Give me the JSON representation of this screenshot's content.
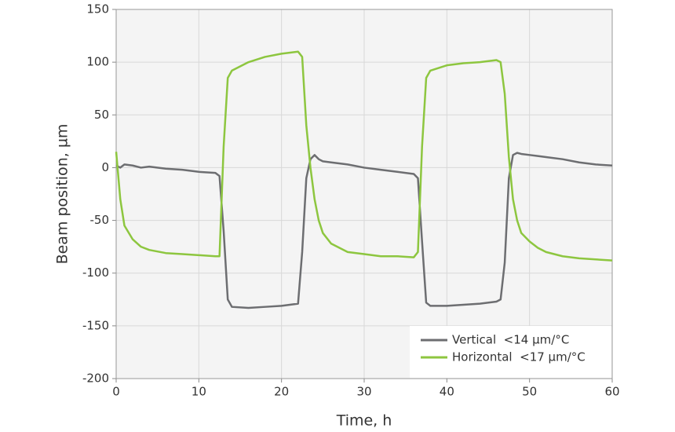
{
  "chart_data": {
    "type": "line",
    "xlabel": "Time, h",
    "ylabel": "Beam position, µm",
    "x": [
      0,
      0.5,
      1,
      2,
      3,
      4,
      6,
      8,
      10,
      12,
      12.5,
      13,
      13.5,
      14,
      16,
      18,
      20,
      22,
      22.5,
      23,
      23.5,
      24,
      24.5,
      25,
      26,
      28,
      30,
      32,
      34,
      36,
      36.5,
      37,
      37.5,
      38,
      40,
      42,
      44,
      46,
      46.5,
      47,
      47.5,
      48,
      48.5,
      49,
      50,
      51,
      52,
      54,
      56,
      58,
      60
    ],
    "series": [
      {
        "name": "Vertical  <14 µm/°C",
        "color": "#6d6e71",
        "values": [
          2,
          0,
          3,
          2,
          0,
          1,
          -1,
          -2,
          -4,
          -5,
          -8,
          -60,
          -125,
          -132,
          -133,
          -132,
          -131,
          -129,
          -80,
          -10,
          8,
          12,
          8,
          6,
          5,
          3,
          0,
          -2,
          -4,
          -6,
          -10,
          -70,
          -128,
          -131,
          -131,
          -130,
          -129,
          -127,
          -125,
          -90,
          -10,
          12,
          14,
          13,
          12,
          11,
          10,
          8,
          5,
          3,
          2
        ]
      },
      {
        "name": "Horizontal  <17 µm/°C",
        "color": "#8dc63f",
        "values": [
          15,
          -30,
          -55,
          -68,
          -75,
          -78,
          -81,
          -82,
          -83,
          -84,
          -84,
          20,
          85,
          92,
          100,
          105,
          108,
          110,
          105,
          40,
          0,
          -30,
          -50,
          -62,
          -72,
          -80,
          -82,
          -84,
          -84,
          -85,
          -80,
          20,
          85,
          92,
          97,
          99,
          100,
          102,
          100,
          70,
          10,
          -30,
          -50,
          -62,
          -70,
          -76,
          -80,
          -84,
          -86,
          -87,
          -88
        ]
      }
    ],
    "xlim": [
      0,
      60
    ],
    "xticks": [
      0,
      10,
      20,
      30,
      40,
      50,
      60
    ],
    "ylim": [
      -200,
      150
    ],
    "yticks": [
      -200,
      -150,
      -100,
      -50,
      0,
      50,
      100,
      150
    ],
    "grid": true,
    "legend": "lower right"
  }
}
